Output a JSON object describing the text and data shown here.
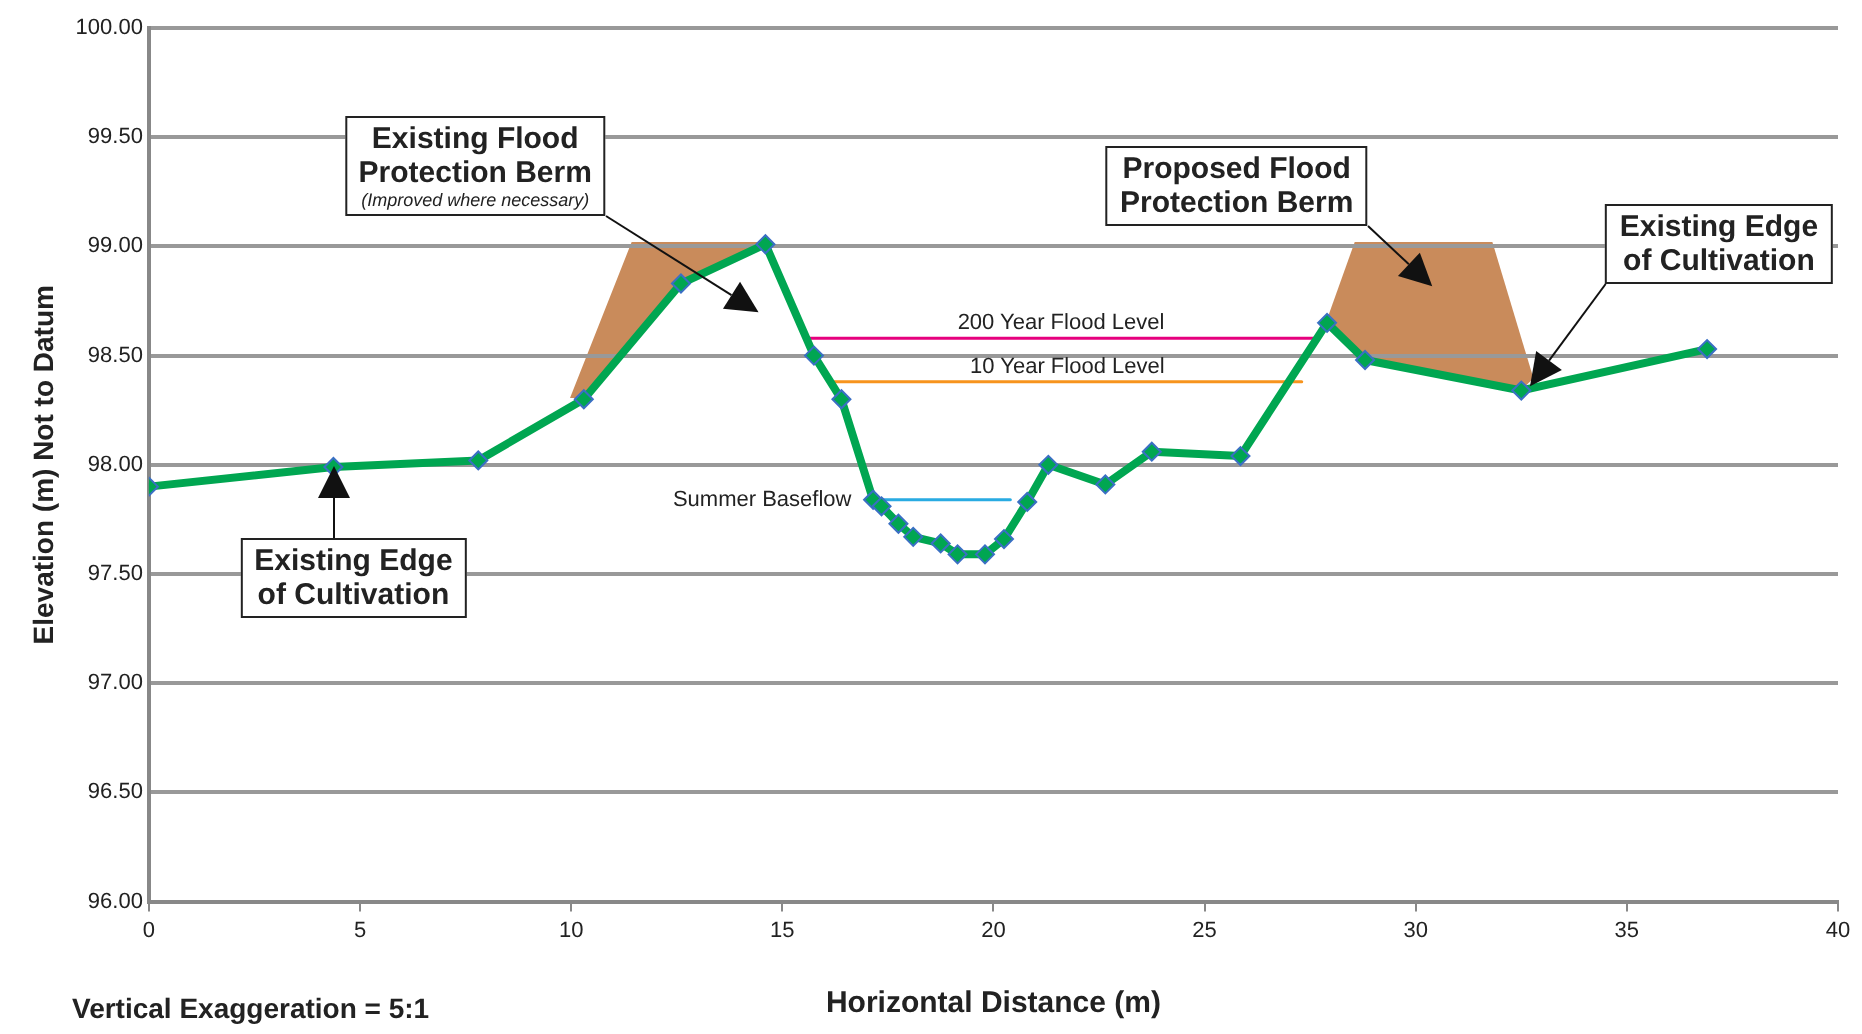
{
  "chart_data": {
    "type": "line",
    "xlabel": "Horizontal Distance (m)",
    "ylabel": "Elevation (m) Not to Datum",
    "xlim": [
      0,
      40
    ],
    "xticks": [
      0,
      5,
      10,
      15,
      20,
      25,
      30,
      35,
      40
    ],
    "ylim": [
      96,
      100
    ],
    "yticks": [
      {
        "value": 96,
        "label": "96.00"
      },
      {
        "value": 96.5,
        "label": "96.50"
      },
      {
        "value": 97,
        "label": "97.00"
      },
      {
        "value": 97.5,
        "label": "97.50"
      },
      {
        "value": 98,
        "label": "98.00"
      },
      {
        "value": 98.5,
        "label": "98.50"
      },
      {
        "value": 99,
        "label": "99.00"
      },
      {
        "value": 99.5,
        "label": "99.50"
      },
      {
        "value": 100,
        "label": "100.00"
      }
    ],
    "grid": "y",
    "legend": false,
    "marker": "diamond",
    "series": [
      {
        "name": "200 Year Flood Level",
        "color": "#e6007e",
        "marker": "none",
        "x": [
          15.6,
          27.6
        ],
        "values": [
          98.58,
          98.58
        ]
      },
      {
        "name": "10 Year Flood Level",
        "color": "#f7941d",
        "marker": "none",
        "x": [
          16.2,
          27.3
        ],
        "values": [
          98.38,
          98.38
        ]
      },
      {
        "name": "Summer Baseflow",
        "color": "#29abe2",
        "marker": "none",
        "x": [
          17.3,
          20.4
        ],
        "values": [
          97.84,
          97.84
        ]
      },
      {
        "color": "#00a651",
        "x": [
          0,
          4.37,
          7.8,
          10.3,
          12.6,
          14.6,
          15.75,
          16.4,
          17.15,
          17.35,
          17.75,
          18.1,
          18.75,
          19.15,
          19.8,
          20.25,
          20.8,
          21.3,
          22.65,
          23.75,
          25.85,
          27.9,
          28.8,
          32.5,
          36.9
        ],
        "values": [
          97.9,
          97.99,
          98.02,
          98.3,
          98.83,
          99.01,
          98.5,
          98.3,
          97.84,
          97.81,
          97.73,
          97.67,
          97.64,
          97.59,
          97.59,
          97.66,
          97.83,
          98.0,
          97.91,
          98.06,
          98.04,
          98.65,
          98.48,
          98.34,
          98.53
        ]
      }
    ],
    "annotations": [
      {
        "text": "Existing Edge\nof Cultivation",
        "x": 4.37,
        "y": 97.99
      },
      "Existing Flood\nProtection Berm\n(Improved where necessary)",
      "Proposed Flood\nProtection Berm",
      "Existing Edge\nof Cultivation",
      "Vertical Exaggeration = 5:1"
    ]
  }
}
